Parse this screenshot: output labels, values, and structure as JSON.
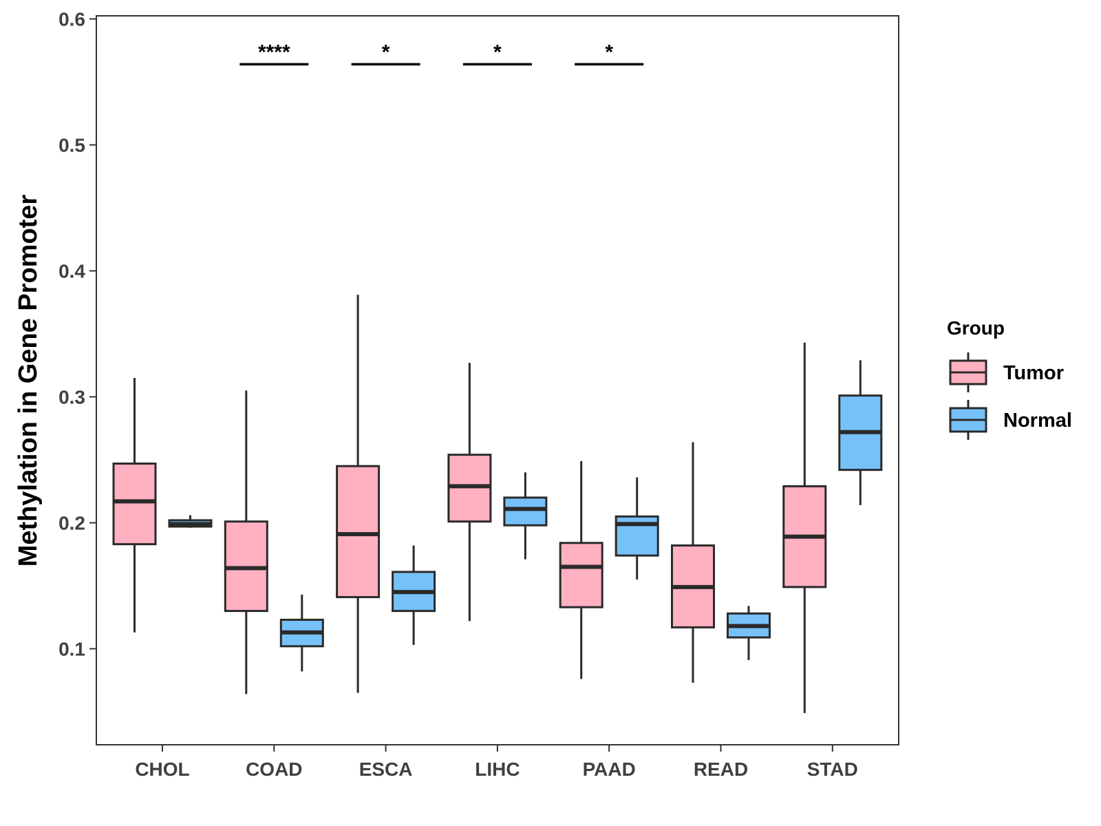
{
  "chart_data": {
    "type": "boxplot",
    "title": "",
    "xlabel": "",
    "ylabel": "Methylation in Gene Promoter",
    "ylim": [
      0.03,
      0.61
    ],
    "yticks": [
      0.1,
      0.2,
      0.3,
      0.4,
      0.5,
      0.6
    ],
    "ytick_labels": [
      "0.1",
      "0.2",
      "0.3",
      "0.4",
      "0.5",
      "0.6"
    ],
    "grid": false,
    "categories": [
      "CHOL",
      "COAD",
      "ESCA",
      "LIHC",
      "PAAD",
      "READ",
      "STAD"
    ],
    "legend": {
      "title": "Group",
      "position": "right"
    },
    "series": [
      {
        "name": "Tumor",
        "color": "#ffb0c1",
        "boxes": [
          {
            "min": 0.113,
            "q1": 0.183,
            "median": 0.217,
            "q3": 0.247,
            "max": 0.315
          },
          {
            "min": 0.064,
            "q1": 0.13,
            "median": 0.164,
            "q3": 0.201,
            "max": 0.305
          },
          {
            "min": 0.065,
            "q1": 0.141,
            "median": 0.191,
            "q3": 0.245,
            "max": 0.381
          },
          {
            "min": 0.122,
            "q1": 0.201,
            "median": 0.229,
            "q3": 0.254,
            "max": 0.327
          },
          {
            "min": 0.076,
            "q1": 0.133,
            "median": 0.165,
            "q3": 0.184,
            "max": 0.249
          },
          {
            "min": 0.073,
            "q1": 0.117,
            "median": 0.149,
            "q3": 0.182,
            "max": 0.264
          },
          {
            "min": 0.049,
            "q1": 0.149,
            "median": 0.189,
            "q3": 0.229,
            "max": 0.343
          }
        ]
      },
      {
        "name": "Normal",
        "color": "#77c1f9",
        "boxes": [
          {
            "min": 0.196,
            "q1": 0.197,
            "median": 0.199,
            "q3": 0.202,
            "max": 0.206
          },
          {
            "min": 0.082,
            "q1": 0.102,
            "median": 0.113,
            "q3": 0.123,
            "max": 0.143
          },
          {
            "min": 0.103,
            "q1": 0.13,
            "median": 0.145,
            "q3": 0.161,
            "max": 0.182
          },
          {
            "min": 0.171,
            "q1": 0.198,
            "median": 0.211,
            "q3": 0.22,
            "max": 0.24
          },
          {
            "min": 0.155,
            "q1": 0.174,
            "median": 0.199,
            "q3": 0.205,
            "max": 0.236
          },
          {
            "min": 0.091,
            "q1": 0.109,
            "median": 0.118,
            "q3": 0.128,
            "max": 0.134
          },
          {
            "min": 0.214,
            "q1": 0.242,
            "median": 0.272,
            "q3": 0.301,
            "max": 0.329
          }
        ]
      }
    ],
    "significance": [
      {
        "category": "COAD",
        "label": "****",
        "y": 0.564
      },
      {
        "category": "ESCA",
        "label": "*",
        "y": 0.564
      },
      {
        "category": "LIHC",
        "label": "*",
        "y": 0.564
      },
      {
        "category": "PAAD",
        "label": "*",
        "y": 0.564
      }
    ]
  }
}
